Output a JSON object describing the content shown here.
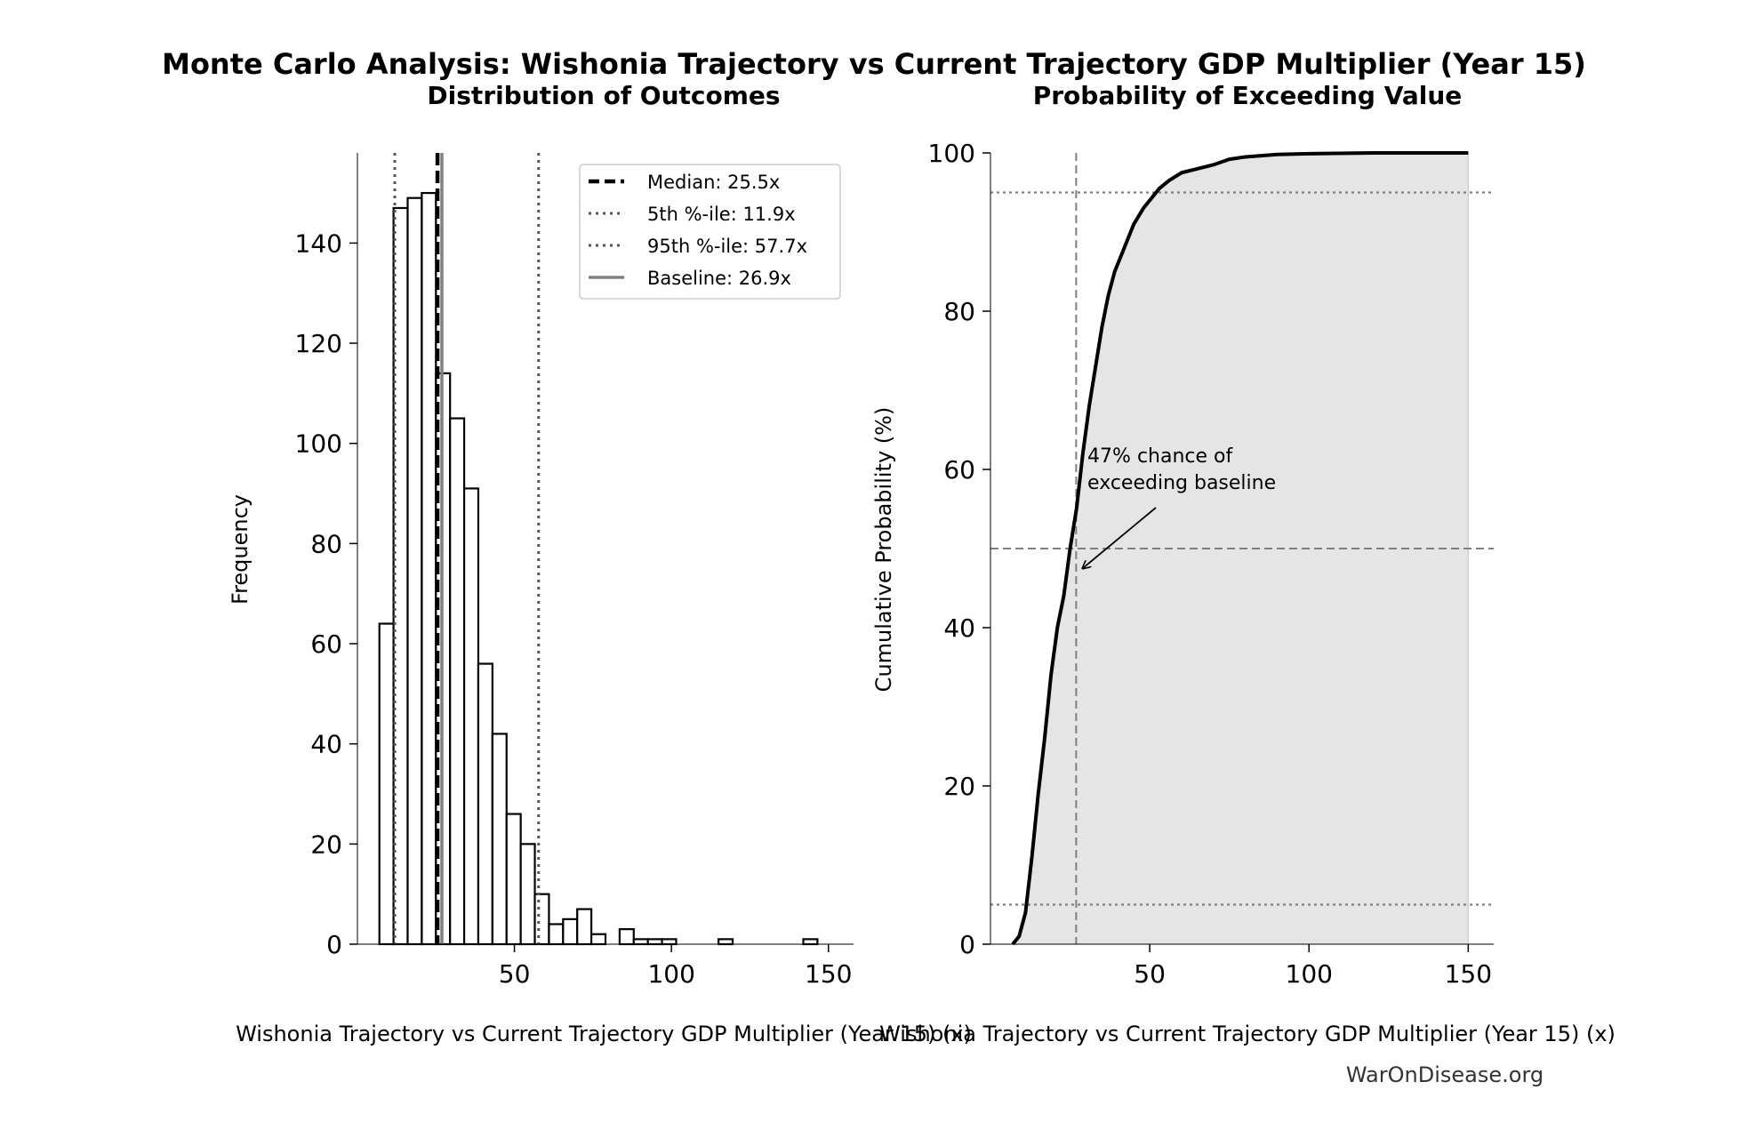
{
  "figure": {
    "title": "Monte Carlo Analysis: Wishonia Trajectory vs Current Trajectory GDP Multiplier (Year 15)",
    "watermark": "WarOnDisease.org"
  },
  "colors": {
    "bar_fill": "#ffffff",
    "bar_edge": "#000000",
    "median_line": "#000000",
    "percentile_line": "#555555",
    "baseline_line": "#808080",
    "cdf_line": "#000000",
    "cdf_fill": "#e5e5e5",
    "guide_line": "#808080",
    "annotation": "#000000"
  },
  "chart_data": [
    {
      "type": "bar",
      "title": "Distribution of Outcomes",
      "xlabel": "Wishonia Trajectory vs Current Trajectory GDP Multiplier (Year 15) (x)",
      "ylabel": "Frequency",
      "xlim": [
        0,
        158
      ],
      "ylim": [
        0,
        158
      ],
      "xticks": [
        50,
        100,
        150
      ],
      "yticks": [
        0,
        20,
        40,
        60,
        80,
        100,
        120,
        140
      ],
      "bin_width": 4.5,
      "bins": [
        {
          "x0": 7.0,
          "count": 64
        },
        {
          "x0": 11.5,
          "count": 147
        },
        {
          "x0": 16.0,
          "count": 149
        },
        {
          "x0": 20.5,
          "count": 150
        },
        {
          "x0": 25.0,
          "count": 114
        },
        {
          "x0": 29.5,
          "count": 105
        },
        {
          "x0": 34.0,
          "count": 91
        },
        {
          "x0": 38.5,
          "count": 56
        },
        {
          "x0": 43.0,
          "count": 42
        },
        {
          "x0": 47.5,
          "count": 26
        },
        {
          "x0": 52.0,
          "count": 20
        },
        {
          "x0": 56.5,
          "count": 10
        },
        {
          "x0": 61.0,
          "count": 4
        },
        {
          "x0": 65.5,
          "count": 5
        },
        {
          "x0": 70.0,
          "count": 7
        },
        {
          "x0": 74.5,
          "count": 2
        },
        {
          "x0": 79.0,
          "count": 0
        },
        {
          "x0": 83.5,
          "count": 3
        },
        {
          "x0": 88.0,
          "count": 1
        },
        {
          "x0": 92.5,
          "count": 1
        },
        {
          "x0": 97.0,
          "count": 1
        },
        {
          "x0": 115.0,
          "count": 1
        },
        {
          "x0": 142.0,
          "count": 1
        }
      ],
      "reference_lines": [
        {
          "label": "Median: 25.5x",
          "x": 25.5,
          "style": "dashed",
          "kind": "median"
        },
        {
          "label": "5th %-ile: 11.9x",
          "x": 11.9,
          "style": "dotted",
          "kind": "percentile"
        },
        {
          "label": "95th %-ile: 57.7x",
          "x": 57.7,
          "style": "dotted",
          "kind": "percentile"
        },
        {
          "label": "Baseline: 26.9x",
          "x": 26.9,
          "style": "solid",
          "kind": "baseline"
        }
      ],
      "legend_position": "top-right"
    },
    {
      "type": "line",
      "title": "Probability of Exceeding Value",
      "xlabel": "Wishonia Trajectory vs Current Trajectory GDP Multiplier (Year 15) (x)",
      "ylabel": "Cumulative Probability (%)",
      "xlim": [
        0,
        158
      ],
      "ylim": [
        0,
        100
      ],
      "xticks": [
        50,
        100,
        150
      ],
      "yticks": [
        0,
        20,
        40,
        60,
        80,
        100
      ],
      "cdf": [
        [
          7,
          0
        ],
        [
          9,
          1
        ],
        [
          11,
          4
        ],
        [
          13,
          11
        ],
        [
          15,
          19
        ],
        [
          17,
          26
        ],
        [
          19,
          34
        ],
        [
          21,
          40
        ],
        [
          23,
          44
        ],
        [
          25,
          50
        ],
        [
          27,
          55
        ],
        [
          29,
          62
        ],
        [
          31,
          68
        ],
        [
          33,
          73
        ],
        [
          35,
          78
        ],
        [
          37,
          82
        ],
        [
          39,
          85
        ],
        [
          41,
          87
        ],
        [
          43,
          89
        ],
        [
          45,
          91
        ],
        [
          48,
          93
        ],
        [
          50,
          94
        ],
        [
          53,
          95.5
        ],
        [
          56,
          96.5
        ],
        [
          60,
          97.5
        ],
        [
          65,
          98
        ],
        [
          70,
          98.5
        ],
        [
          75,
          99.2
        ],
        [
          80,
          99.5
        ],
        [
          90,
          99.8
        ],
        [
          100,
          99.9
        ],
        [
          120,
          100
        ],
        [
          150,
          100
        ]
      ],
      "fill_to": 150,
      "hlines": [
        95,
        50,
        5
      ],
      "vline_x": 26.9,
      "annotation": {
        "text_lines": [
          "47% chance of",
          "exceeding baseline"
        ],
        "xy": [
          26.9,
          47
        ],
        "xytext": [
          31,
          60
        ]
      }
    }
  ]
}
